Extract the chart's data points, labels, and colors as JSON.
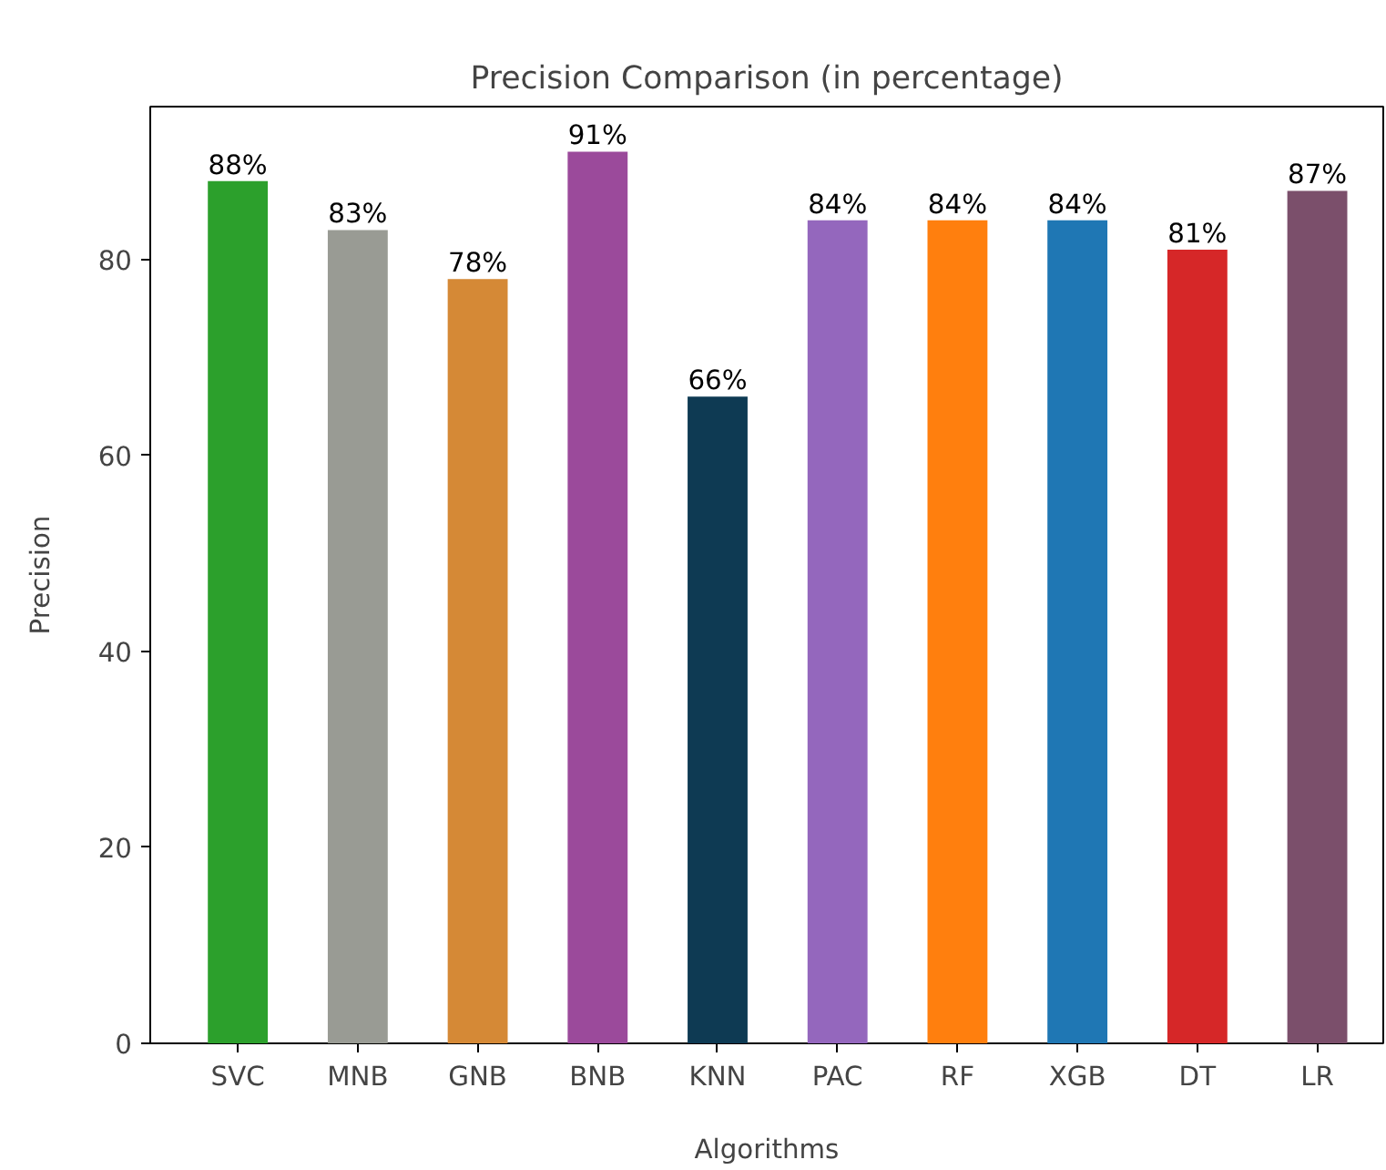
{
  "chart_data": {
    "type": "bar",
    "title": "Precision Comparison (in percentage)",
    "xlabel": "Algorithms",
    "ylabel": "Precision",
    "categories": [
      "SVC",
      "MNB",
      "GNB",
      "BNB",
      "KNN",
      "PAC",
      "RF",
      "XGB",
      "DT",
      "LR"
    ],
    "values": [
      88,
      83,
      78,
      91,
      66,
      84,
      84,
      84,
      81,
      87
    ],
    "colors": [
      "#2ca02c",
      "#999b94",
      "#d58936",
      "#9b4a9b",
      "#0e3a53",
      "#9467bd",
      "#ff7f0e",
      "#1f77b4",
      "#d62728",
      "#7b4f6b"
    ],
    "value_labels": [
      "88%",
      "83%",
      "78%",
      "91%",
      "66%",
      "84%",
      "84%",
      "84%",
      "81%",
      "87%"
    ],
    "ylim": [
      0,
      95.6
    ],
    "yticks": [
      0,
      20,
      40,
      60,
      80
    ],
    "grid": false
  }
}
